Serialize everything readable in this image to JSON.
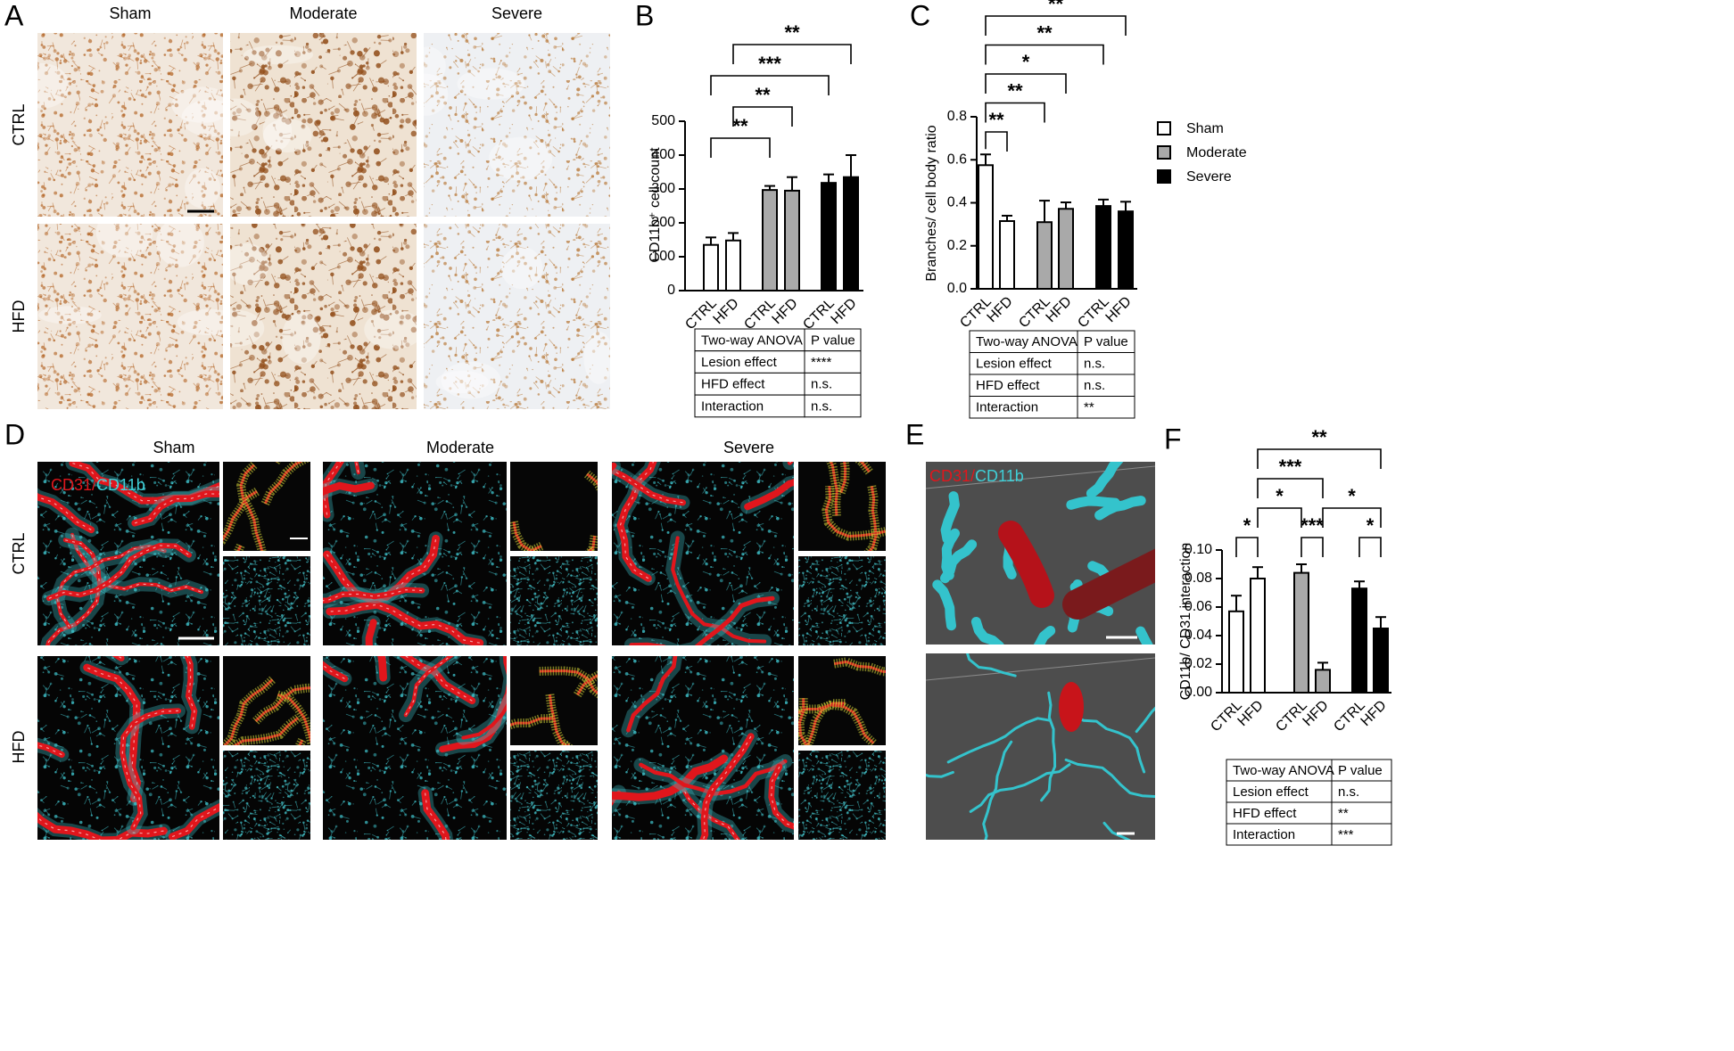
{
  "panel_letters": [
    "A",
    "B",
    "C",
    "D",
    "E",
    "F"
  ],
  "groups": [
    "Sham",
    "Moderate",
    "Severe"
  ],
  "conditions": [
    "CTRL",
    "HFD"
  ],
  "stain": {
    "red": "CD31/",
    "cyan": "CD11b"
  },
  "chart_data": [
    {
      "type": "bar",
      "ylabel": "CD11b⁺ cell count",
      "ylim": [
        0,
        500
      ],
      "yticks": [
        0,
        100,
        200,
        300,
        400,
        500
      ],
      "series": [
        {
          "color": "#ffffff",
          "values": [
            135,
            148
          ],
          "errors": [
            22,
            22
          ]
        },
        {
          "color": "#a9a9a9",
          "values": [
            297,
            295
          ],
          "errors": [
            12,
            40
          ]
        },
        {
          "color": "#000000",
          "values": [
            318,
            335
          ],
          "errors": [
            25,
            65
          ]
        }
      ],
      "significance": [
        {
          "pair": [
            0,
            2
          ],
          "label": "**"
        },
        {
          "pair": [
            1,
            3
          ],
          "label": "**"
        },
        {
          "pair": [
            0,
            4
          ],
          "label": "***"
        },
        {
          "pair": [
            1,
            5
          ],
          "label": "**"
        }
      ],
      "table": [
        [
          "Two-way ANOVA",
          "P value"
        ],
        [
          "Lesion effect",
          "****"
        ],
        [
          "HFD effect",
          "n.s."
        ],
        [
          "Interaction",
          "n.s."
        ]
      ]
    },
    {
      "type": "bar",
      "ylabel": "Branches/ cell body ratio",
      "ylim": [
        0,
        0.8
      ],
      "yticks": [
        {
          "value": 0,
          "label": "0.0"
        },
        0.2,
        0.4,
        0.6,
        0.8
      ],
      "series": [
        {
          "color": "#ffffff",
          "values": [
            0.575,
            0.315
          ],
          "errors": [
            0.05,
            0.025
          ]
        },
        {
          "color": "#a9a9a9",
          "values": [
            0.31,
            0.372
          ],
          "errors": [
            0.1,
            0.03
          ]
        },
        {
          "color": "#000000",
          "values": [
            0.385,
            0.36
          ],
          "errors": [
            0.03,
            0.045
          ]
        }
      ],
      "significance": [
        {
          "pair": [
            0,
            1
          ],
          "label": "**"
        },
        {
          "pair": [
            0,
            2
          ],
          "label": "**"
        },
        {
          "pair": [
            0,
            3
          ],
          "label": "*"
        },
        {
          "pair": [
            0,
            4
          ],
          "label": "**"
        },
        {
          "pair": [
            0,
            5
          ],
          "label": "**"
        }
      ],
      "table": [
        [
          "Two-way ANOVA",
          "P value"
        ],
        [
          "Lesion effect",
          "n.s."
        ],
        [
          "HFD effect",
          "n.s."
        ],
        [
          "Interaction",
          "**"
        ]
      ]
    },
    {
      "type": "bar",
      "ylabel": "CD11b/ CD31 interaction",
      "ylim": [
        0,
        0.1
      ],
      "yticks": [
        {
          "value": 0,
          "label": "0.00"
        },
        {
          "value": 0.02,
          "label": "0.02"
        },
        {
          "value": 0.04,
          "label": "0.04"
        },
        {
          "value": 0.06,
          "label": "0.06"
        },
        {
          "value": 0.08,
          "label": "0.08"
        },
        {
          "value": 0.1,
          "label": "0.10"
        }
      ],
      "series": [
        {
          "color": "#ffffff",
          "values": [
            0.057,
            0.08
          ],
          "errors": [
            0.011,
            0.008
          ]
        },
        {
          "color": "#a9a9a9",
          "values": [
            0.084,
            0.016
          ],
          "errors": [
            0.006,
            0.005
          ]
        },
        {
          "color": "#000000",
          "values": [
            0.073,
            0.045
          ],
          "errors": [
            0.005,
            0.008
          ]
        }
      ],
      "significance": [
        {
          "pair": [
            0,
            1
          ],
          "label": "*"
        },
        {
          "pair": [
            2,
            3
          ],
          "label": "***"
        },
        {
          "pair": [
            4,
            5
          ],
          "label": "*"
        },
        {
          "pair": [
            1,
            2
          ],
          "label": "*"
        },
        {
          "pair": [
            3,
            5
          ],
          "label": "*"
        },
        {
          "pair": [
            1,
            3
          ],
          "label": "***"
        },
        {
          "pair": [
            1,
            5
          ],
          "label": "**"
        }
      ],
      "table": [
        [
          "Two-way ANOVA",
          "P value"
        ],
        [
          "Lesion effect",
          "n.s."
        ],
        [
          "HFD effect",
          "**"
        ],
        [
          "Interaction",
          "***"
        ]
      ]
    }
  ]
}
